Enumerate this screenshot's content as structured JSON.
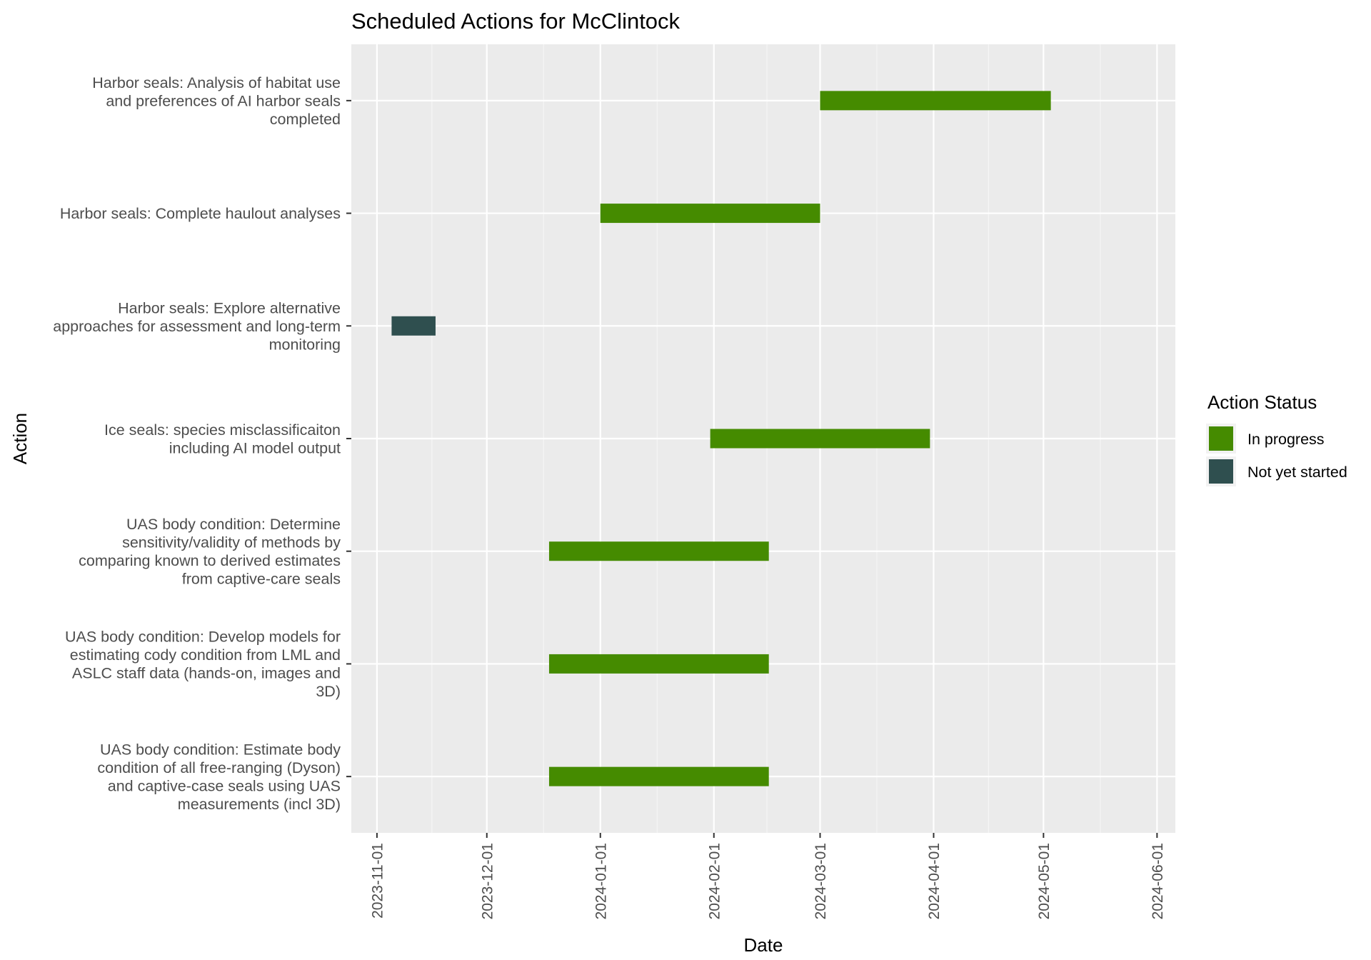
{
  "chart_data": {
    "type": "gantt",
    "title": "Scheduled Actions for McClintock",
    "xlabel": "Date",
    "ylabel": "Action",
    "x_type": "date",
    "xlim": [
      "2023-10-25",
      "2024-06-06"
    ],
    "x_ticks": [
      "2023-11-01",
      "2023-12-01",
      "2024-01-01",
      "2024-02-01",
      "2024-03-01",
      "2024-04-01",
      "2024-05-01",
      "2024-06-01"
    ],
    "grid": true,
    "legend": {
      "title": "Action Status",
      "placement": "right",
      "entries": [
        {
          "label": "In progress",
          "color": "#458b00"
        },
        {
          "label": "Not yet started",
          "color": "#2f4f4f"
        }
      ]
    },
    "tasks": [
      {
        "label_lines": [
          "Harbor seals: Analysis of habitat use",
          "and preferences of AI harbor seals",
          "completed"
        ],
        "start": "2024-03-01",
        "end": "2024-05-03",
        "status": "In progress"
      },
      {
        "label_lines": [
          "Harbor seals: Complete haulout analyses"
        ],
        "start": "2024-01-01",
        "end": "2024-03-01",
        "status": "In progress"
      },
      {
        "label_lines": [
          "Harbor seals: Explore alternative",
          "approaches for assessment and long-term",
          "monitoring"
        ],
        "start": "2023-11-05",
        "end": "2023-11-17",
        "status": "Not yet started"
      },
      {
        "label_lines": [
          "Ice seals: species misclassificaiton",
          "including AI model output"
        ],
        "start": "2024-01-31",
        "end": "2024-03-31",
        "status": "In progress"
      },
      {
        "label_lines": [
          "UAS body condition: Determine",
          "sensitivity/validity of methods by",
          "comparing known to derived estimates",
          "from captive-care seals"
        ],
        "start": "2023-12-18",
        "end": "2024-02-16",
        "status": "In progress"
      },
      {
        "label_lines": [
          "UAS body condition: Develop models for",
          "estimating cody condition from LML and",
          "ASLC staff data (hands-on, images and",
          "3D)"
        ],
        "start": "2023-12-18",
        "end": "2024-02-16",
        "status": "In progress"
      },
      {
        "label_lines": [
          "UAS body condition: Estimate body",
          "condition of all free-ranging (Dyson)",
          "and captive-case seals using UAS",
          "measurements (incl 3D)"
        ],
        "start": "2023-12-18",
        "end": "2024-02-16",
        "status": "In progress"
      }
    ]
  }
}
